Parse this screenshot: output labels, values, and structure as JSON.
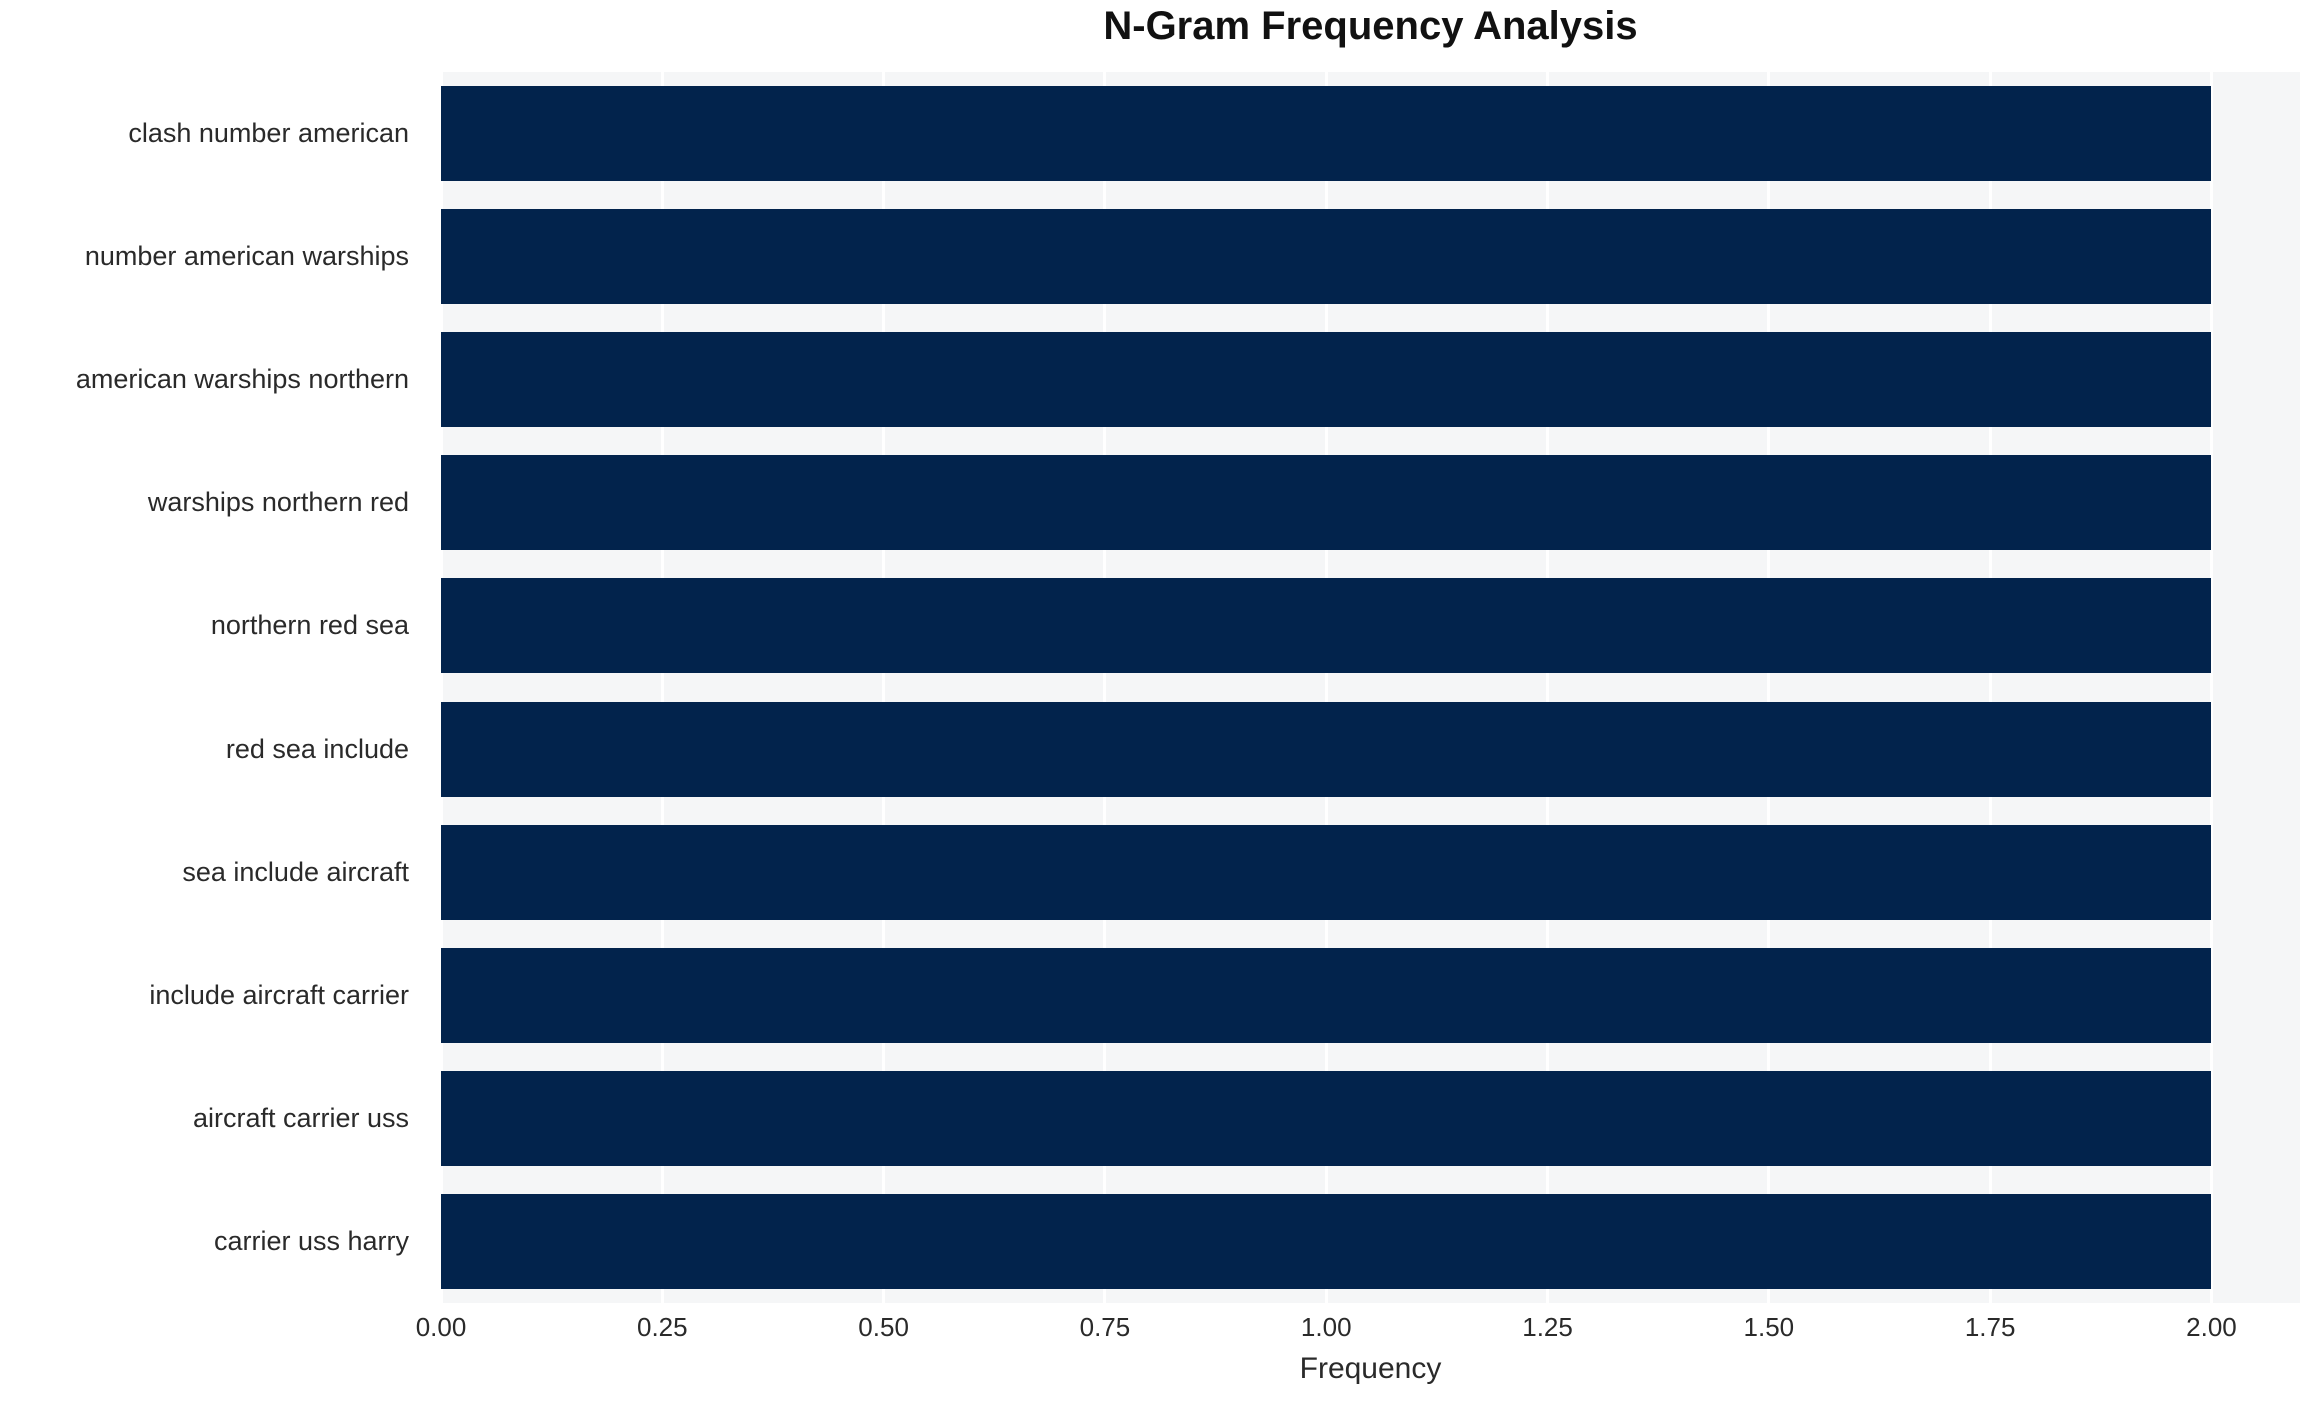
{
  "chart_data": {
    "type": "bar",
    "orientation": "horizontal",
    "title": "N-Gram Frequency Analysis",
    "xlabel": "Frequency",
    "ylabel": "",
    "categories": [
      "clash number american",
      "number american warships",
      "american warships northern",
      "warships northern red",
      "northern red sea",
      "red sea include",
      "sea include aircraft",
      "include aircraft carrier",
      "aircraft carrier uss",
      "carrier uss harry"
    ],
    "values": [
      2,
      2,
      2,
      2,
      2,
      2,
      2,
      2,
      2,
      2
    ],
    "xlim": [
      0,
      2.1
    ],
    "xticks": [
      0,
      0.25,
      0.5,
      0.75,
      1.0,
      1.25,
      1.5,
      1.75,
      2.0
    ],
    "xtick_labels": [
      "0.00",
      "0.25",
      "0.50",
      "0.75",
      "1.00",
      "1.25",
      "1.50",
      "1.75",
      "2.00"
    ],
    "grid": "vertical-white-lines",
    "legend": "none",
    "colors": {
      "bar": "#02234C",
      "plot_bg": "#F5F6F7",
      "figure_bg": "#FFFFFF",
      "grid": "#FFFFFF",
      "text": "#2A2A2A",
      "title_text": "#111111"
    }
  }
}
